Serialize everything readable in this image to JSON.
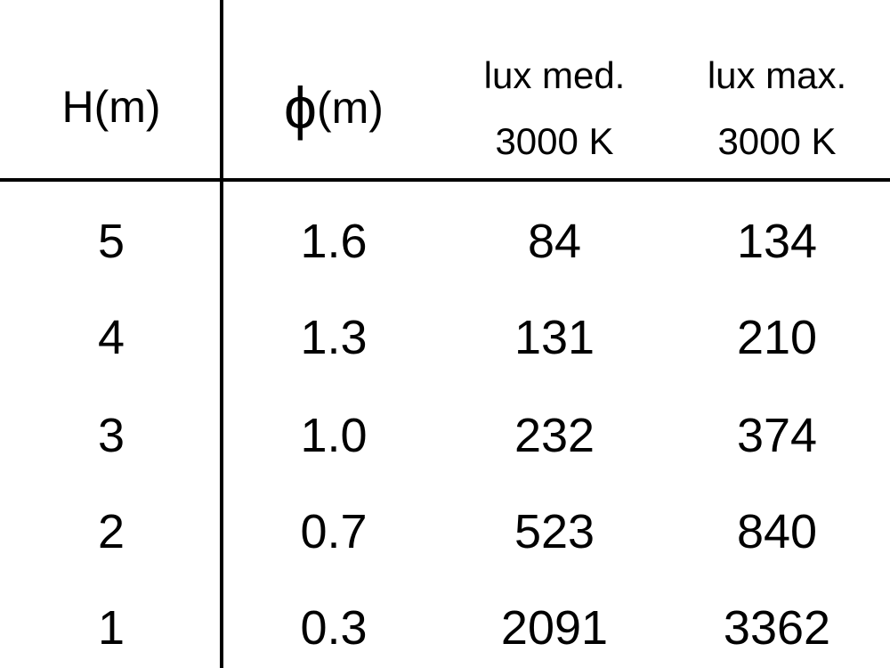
{
  "table": {
    "headers": [
      {
        "line1": "H(m)",
        "line2": ""
      },
      {
        "symbol": "ϕ",
        "unit": "(m)"
      },
      {
        "line1": "lux med.",
        "line2": "3000 K"
      },
      {
        "line1": "lux max.",
        "line2": "3000 K"
      }
    ],
    "rows": [
      [
        "5",
        "1.6",
        "84",
        "134"
      ],
      [
        "4",
        "1.3",
        "131",
        "210"
      ],
      [
        "3",
        "1.0",
        "232",
        "374"
      ],
      [
        "2",
        "0.7",
        "523",
        "840"
      ],
      [
        "1",
        "0.3",
        "2091",
        "3362"
      ]
    ]
  }
}
